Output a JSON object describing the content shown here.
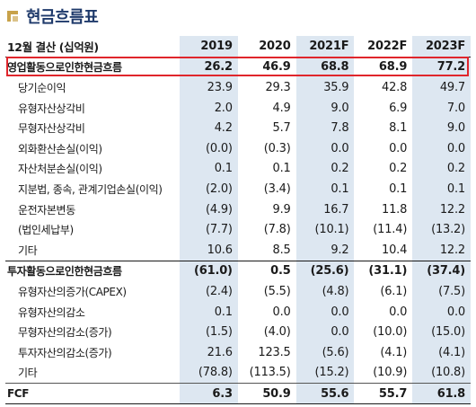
{
  "title": "현금흐름표",
  "logo_icon": "brand-logo-icon",
  "colors": {
    "title": "#1f3a6b",
    "stripe": "#dde7f1",
    "highlight": "#e0262c"
  },
  "header": {
    "label": "12월 결산 (십억원)",
    "years": [
      "2019",
      "2020",
      "2021F",
      "2022F",
      "2023F"
    ]
  },
  "rows": [
    {
      "label": "영업활동으로인한현금흐름",
      "values": [
        "26.2",
        "46.9",
        "68.8",
        "68.9",
        "77.2"
      ]
    },
    {
      "label": "당기순이익",
      "values": [
        "23.9",
        "29.3",
        "35.9",
        "42.8",
        "49.7"
      ]
    },
    {
      "label": "유형자산상각비",
      "values": [
        "2.0",
        "4.9",
        "9.0",
        "6.9",
        "7.0"
      ]
    },
    {
      "label": "무형자산상각비",
      "values": [
        "4.2",
        "5.7",
        "7.8",
        "8.1",
        "9.0"
      ]
    },
    {
      "label": "외화환산손실(이익)",
      "values": [
        "(0.0)",
        "(0.3)",
        "0.0",
        "0.0",
        "0.0"
      ]
    },
    {
      "label": "자산처분손실(이익)",
      "values": [
        "0.1",
        "0.1",
        "0.2",
        "0.2",
        "0.2"
      ]
    },
    {
      "label": "지분법, 종속, 관계기업손실(이익)",
      "values": [
        "(2.0)",
        "(3.4)",
        "0.1",
        "0.1",
        "0.1"
      ]
    },
    {
      "label": "운전자본변동",
      "values": [
        "(4.9)",
        "9.9",
        "16.7",
        "11.8",
        "12.2"
      ]
    },
    {
      "label": "(법인세납부)",
      "values": [
        "(7.7)",
        "(7.8)",
        "(10.1)",
        "(11.4)",
        "(13.2)"
      ]
    },
    {
      "label": "기타",
      "values": [
        "10.6",
        "8.5",
        "9.2",
        "10.4",
        "12.2"
      ]
    },
    {
      "label": "투자활동으로인한현금흐름",
      "values": [
        "(61.0)",
        "0.5",
        "(25.6)",
        "(31.1)",
        "(37.4)"
      ]
    },
    {
      "label": "유형자산의증가(CAPEX)",
      "values": [
        "(2.4)",
        "(5.5)",
        "(4.8)",
        "(6.1)",
        "(7.5)"
      ]
    },
    {
      "label": "유형자산의감소",
      "values": [
        "0.1",
        "0.0",
        "0.0",
        "0.0",
        "0.0"
      ]
    },
    {
      "label": "무형자산의감소(증가)",
      "values": [
        "(1.5)",
        "(4.0)",
        "0.0",
        "(10.0)",
        "(15.0)"
      ]
    },
    {
      "label": "투자자산의감소(증가)",
      "values": [
        "21.6",
        "123.5",
        "(5.6)",
        "(4.1)",
        "(4.1)"
      ]
    },
    {
      "label": "기타",
      "values": [
        "(78.8)",
        "(113.5)",
        "(15.2)",
        "(10.9)",
        "(10.8)"
      ]
    },
    {
      "label": "FCF",
      "values": [
        "6.3",
        "50.9",
        "55.6",
        "55.7",
        "61.8"
      ]
    }
  ]
}
